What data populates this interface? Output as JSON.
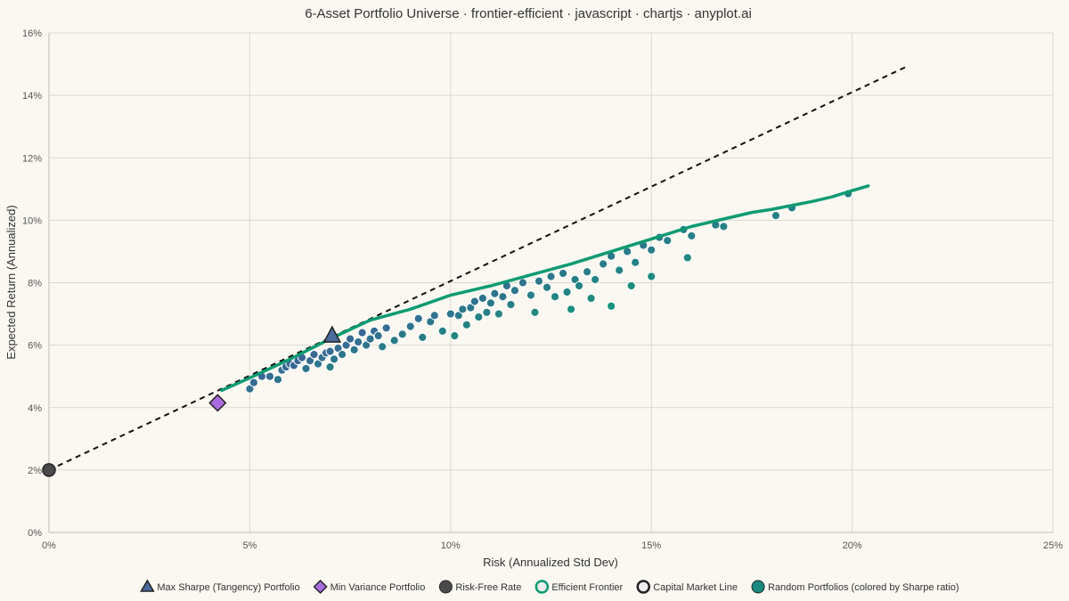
{
  "chart_data": {
    "type": "scatter",
    "title": "6-Asset Portfolio Universe · frontier-efficient · javascript · chartjs · anyplot.ai",
    "xlabel": "Risk (Annualized Std Dev)",
    "ylabel": "Expected Return (Annualized)",
    "xlim": [
      0,
      25
    ],
    "ylim": [
      0,
      16
    ],
    "x_ticks": [
      "0%",
      "5%",
      "10%",
      "15%",
      "20%",
      "25%"
    ],
    "y_ticks": [
      "0%",
      "2%",
      "4%",
      "6%",
      "8%",
      "10%",
      "12%",
      "14%",
      "16%"
    ],
    "grid": true,
    "legend_position": "bottom",
    "legend": [
      {
        "label": "Max Sharpe (Tangency) Portfolio",
        "marker": "triangle",
        "color": "#4A6A9A"
      },
      {
        "label": "Min Variance Portfolio",
        "marker": "diamond",
        "color": "#A96CE0"
      },
      {
        "label": "Risk-Free Rate",
        "marker": "circle",
        "color": "#4A4A4A"
      },
      {
        "label": "Efficient Frontier",
        "marker": "ring",
        "color": "#0E9B72"
      },
      {
        "label": "Capital Market Line",
        "marker": "ring",
        "color": "#222222"
      },
      {
        "label": "Random Portfolios (colored by Sharpe ratio)",
        "marker": "circle",
        "color": "#1A8A80"
      }
    ],
    "colors": {
      "frontier": "#0E9B72",
      "cml": "#111111",
      "tangency": "#4A6A9A",
      "min_variance": "#A96CE0",
      "risk_free": "#4A4A4A",
      "random_low_sharpe": "#17937A",
      "random_high_sharpe": "#3A6696"
    },
    "capital_market_line": [
      [
        0,
        2.0
      ],
      [
        21.4,
        14.95
      ]
    ],
    "efficient_frontier": [
      [
        4.3,
        4.55
      ],
      [
        5.0,
        4.95
      ],
      [
        6.0,
        5.55
      ],
      [
        7.0,
        6.2
      ],
      [
        8.0,
        6.8
      ],
      [
        9.0,
        7.15
      ],
      [
        10.0,
        7.6
      ],
      [
        11.0,
        7.9
      ],
      [
        12.0,
        8.25
      ],
      [
        13.0,
        8.6
      ],
      [
        14.0,
        9.0
      ],
      [
        15.0,
        9.4
      ],
      [
        16.0,
        9.8
      ],
      [
        17.0,
        10.1
      ],
      [
        17.5,
        10.25
      ],
      [
        18.0,
        10.35
      ],
      [
        19.0,
        10.6
      ],
      [
        19.5,
        10.75
      ],
      [
        20.0,
        10.95
      ],
      [
        20.4,
        11.1
      ]
    ],
    "tangency_portfolio": {
      "x": 7.05,
      "y": 6.3
    },
    "min_variance_portfolio": {
      "x": 4.2,
      "y": 4.15
    },
    "risk_free_rate": {
      "x": 0,
      "y": 2.0
    },
    "random_portfolios": [
      [
        5.0,
        4.6
      ],
      [
        5.1,
        4.8
      ],
      [
        5.3,
        5.0
      ],
      [
        5.5,
        5.0
      ],
      [
        5.7,
        4.9
      ],
      [
        5.8,
        5.2
      ],
      [
        5.9,
        5.3
      ],
      [
        6.0,
        5.4
      ],
      [
        6.1,
        5.35
      ],
      [
        6.2,
        5.5
      ],
      [
        6.3,
        5.6
      ],
      [
        6.4,
        5.25
      ],
      [
        6.5,
        5.5
      ],
      [
        6.6,
        5.7
      ],
      [
        6.7,
        5.4
      ],
      [
        6.8,
        5.6
      ],
      [
        6.9,
        5.75
      ],
      [
        7.0,
        5.8
      ],
      [
        7.0,
        5.3
      ],
      [
        7.1,
        5.55
      ],
      [
        7.2,
        5.9
      ],
      [
        7.3,
        5.7
      ],
      [
        7.4,
        6.0
      ],
      [
        7.5,
        6.2
      ],
      [
        7.6,
        5.85
      ],
      [
        7.7,
        6.1
      ],
      [
        7.8,
        6.4
      ],
      [
        7.9,
        6.0
      ],
      [
        8.0,
        6.2
      ],
      [
        8.1,
        6.45
      ],
      [
        8.2,
        6.3
      ],
      [
        8.3,
        5.95
      ],
      [
        8.4,
        6.55
      ],
      [
        8.6,
        6.15
      ],
      [
        8.8,
        6.35
      ],
      [
        9.0,
        6.6
      ],
      [
        9.2,
        6.85
      ],
      [
        9.3,
        6.25
      ],
      [
        9.5,
        6.75
      ],
      [
        9.6,
        6.95
      ],
      [
        9.8,
        6.45
      ],
      [
        10.0,
        7.0
      ],
      [
        10.1,
        6.3
      ],
      [
        10.2,
        6.95
      ],
      [
        10.3,
        7.15
      ],
      [
        10.4,
        6.65
      ],
      [
        10.5,
        7.2
      ],
      [
        10.6,
        7.4
      ],
      [
        10.7,
        6.9
      ],
      [
        10.8,
        7.5
      ],
      [
        10.9,
        7.05
      ],
      [
        11.0,
        7.35
      ],
      [
        11.1,
        7.65
      ],
      [
        11.2,
        7.0
      ],
      [
        11.3,
        7.55
      ],
      [
        11.4,
        7.9
      ],
      [
        11.5,
        7.3
      ],
      [
        11.6,
        7.75
      ],
      [
        11.8,
        8.0
      ],
      [
        12.0,
        7.6
      ],
      [
        12.1,
        7.05
      ],
      [
        12.2,
        8.05
      ],
      [
        12.4,
        7.85
      ],
      [
        12.5,
        8.2
      ],
      [
        12.6,
        7.55
      ],
      [
        12.8,
        8.3
      ],
      [
        12.9,
        7.7
      ],
      [
        13.0,
        7.15
      ],
      [
        13.1,
        8.1
      ],
      [
        13.2,
        7.9
      ],
      [
        13.4,
        8.35
      ],
      [
        13.5,
        7.5
      ],
      [
        13.6,
        8.1
      ],
      [
        13.8,
        8.6
      ],
      [
        14.0,
        8.85
      ],
      [
        14.0,
        7.25
      ],
      [
        14.2,
        8.4
      ],
      [
        14.4,
        9.0
      ],
      [
        14.5,
        7.9
      ],
      [
        14.6,
        8.65
      ],
      [
        14.8,
        9.2
      ],
      [
        15.0,
        8.2
      ],
      [
        15.0,
        9.05
      ],
      [
        15.2,
        9.45
      ],
      [
        15.4,
        9.35
      ],
      [
        15.8,
        9.7
      ],
      [
        15.9,
        8.8
      ],
      [
        16.0,
        9.5
      ],
      [
        16.6,
        9.85
      ],
      [
        16.8,
        9.8
      ],
      [
        18.1,
        10.15
      ],
      [
        18.5,
        10.4
      ],
      [
        19.9,
        10.85
      ]
    ]
  }
}
